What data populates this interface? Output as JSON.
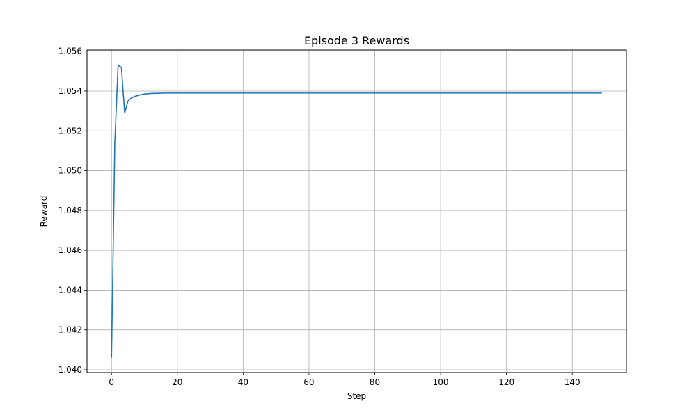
{
  "chart_data": {
    "type": "line",
    "title": "Episode 3 Rewards",
    "xlabel": "Step",
    "ylabel": "Reward",
    "xlim": [
      -7.45,
      156.45
    ],
    "ylim": [
      1.03986,
      1.05606
    ],
    "xticks": [
      0,
      20,
      40,
      60,
      80,
      100,
      120,
      140
    ],
    "xtick_labels": [
      "0",
      "20",
      "40",
      "60",
      "80",
      "100",
      "120",
      "140"
    ],
    "yticks": [
      1.04,
      1.042,
      1.044,
      1.046,
      1.048,
      1.05,
      1.052,
      1.054,
      1.056
    ],
    "ytick_labels": [
      "1.040",
      "1.042",
      "1.044",
      "1.046",
      "1.048",
      "1.050",
      "1.052",
      "1.054",
      "1.056"
    ],
    "grid": true,
    "series": [
      {
        "color": "#1f77b4",
        "x": [
          0,
          1,
          2,
          3,
          4,
          5,
          6,
          7,
          8,
          9,
          10,
          12,
          14,
          16,
          18,
          20,
          30,
          40,
          60,
          80,
          100,
          120,
          140,
          149
        ],
        "y": [
          1.0406,
          1.0514,
          1.0553,
          1.0552,
          1.0529,
          1.0535,
          1.05365,
          1.05373,
          1.05378,
          1.05382,
          1.05385,
          1.05388,
          1.05389,
          1.0539,
          1.0539,
          1.0539,
          1.0539,
          1.0539,
          1.0539,
          1.0539,
          1.0539,
          1.0539,
          1.0539,
          1.0539
        ]
      }
    ]
  }
}
